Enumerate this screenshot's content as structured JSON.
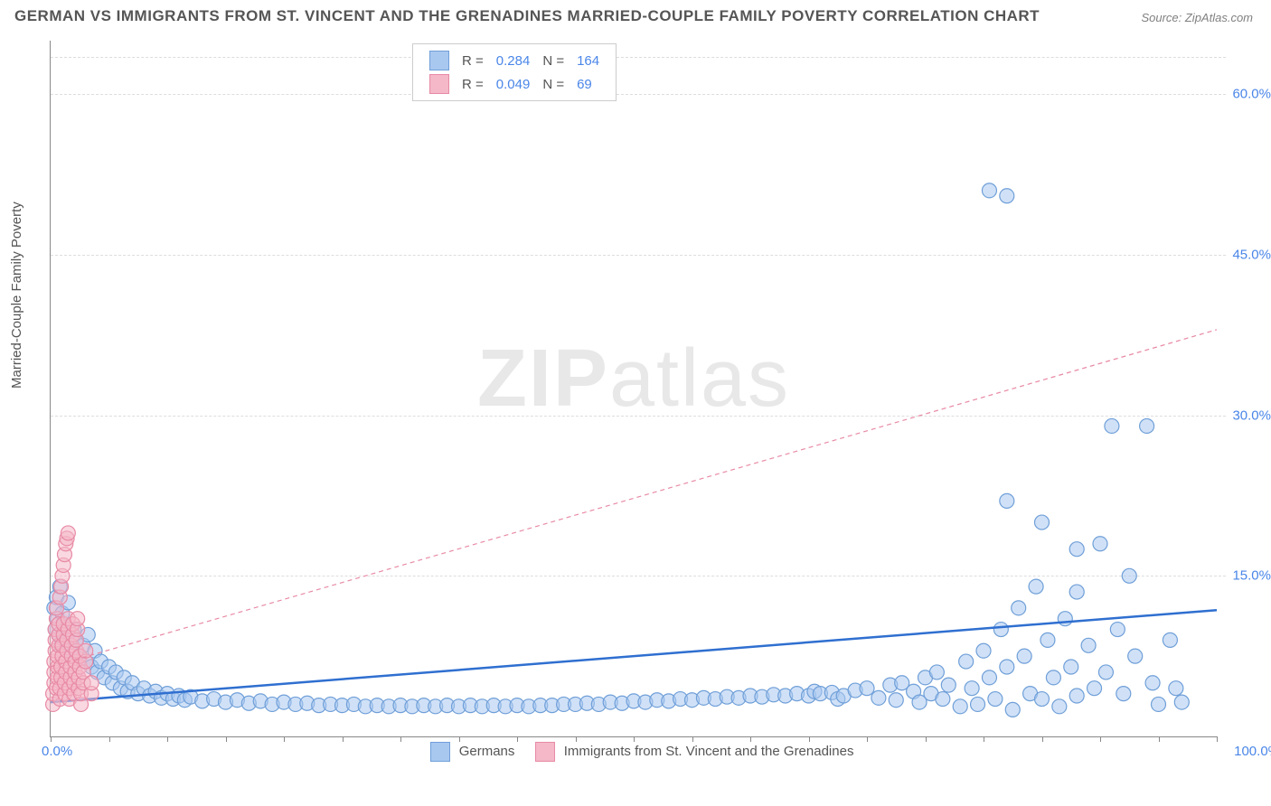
{
  "title": "GERMAN VS IMMIGRANTS FROM ST. VINCENT AND THE GRENADINES MARRIED-COUPLE FAMILY POVERTY CORRELATION CHART",
  "source": "Source: ZipAtlas.com",
  "watermark_bold": "ZIP",
  "watermark_light": "atlas",
  "chart": {
    "type": "scatter",
    "ylabel": "Married-Couple Family Poverty",
    "xlim": [
      0,
      100
    ],
    "ylim": [
      0,
      65
    ],
    "yticks": [
      15,
      30,
      45,
      60
    ],
    "ytick_labels": [
      "15.0%",
      "30.0%",
      "45.0%",
      "60.0%"
    ],
    "xtick_left": "0.0%",
    "xtick_right": "100.0%",
    "xtick_positions": [
      0,
      5,
      10,
      15,
      20,
      25,
      30,
      35,
      40,
      45,
      50,
      55,
      60,
      65,
      70,
      75,
      80,
      85,
      90,
      95,
      100
    ],
    "grid_color": "#dddddd",
    "background_color": "#ffffff",
    "marker_radius_base": 8,
    "marker_stroke_width": 1.2,
    "series": [
      {
        "name": "Germans",
        "label": "Germans",
        "color_fill": "#a9c8f0",
        "color_stroke": "#6f9fd8",
        "fill_opacity": 0.55,
        "R": "0.284",
        "N": "164",
        "trend": {
          "x1": 0,
          "y1": 3.2,
          "x2": 100,
          "y2": 11.8,
          "color": "#2f6fd0",
          "width": 2.5,
          "dash": "none"
        },
        "points": [
          [
            0.3,
            12
          ],
          [
            0.4,
            10
          ],
          [
            0.5,
            13
          ],
          [
            0.6,
            11
          ],
          [
            0.7,
            9.5
          ],
          [
            0.8,
            14
          ],
          [
            0.9,
            8.5
          ],
          [
            1.0,
            11.5
          ],
          [
            1.1,
            10.5
          ],
          [
            1.2,
            9
          ],
          [
            1.5,
            12.5
          ],
          [
            1.8,
            8
          ],
          [
            2.0,
            10
          ],
          [
            2.2,
            9
          ],
          [
            2.5,
            7.5
          ],
          [
            2.8,
            8.5
          ],
          [
            3.0,
            7
          ],
          [
            3.2,
            9.5
          ],
          [
            3.5,
            6.5
          ],
          [
            3.8,
            8
          ],
          [
            4.0,
            6
          ],
          [
            4.3,
            7
          ],
          [
            4.6,
            5.5
          ],
          [
            5.0,
            6.5
          ],
          [
            5.3,
            5
          ],
          [
            5.6,
            6
          ],
          [
            6.0,
            4.5
          ],
          [
            6.3,
            5.5
          ],
          [
            6.6,
            4.2
          ],
          [
            7.0,
            5
          ],
          [
            7.5,
            4
          ],
          [
            8.0,
            4.5
          ],
          [
            8.5,
            3.8
          ],
          [
            9.0,
            4.2
          ],
          [
            9.5,
            3.6
          ],
          [
            10,
            4
          ],
          [
            10.5,
            3.5
          ],
          [
            11,
            3.8
          ],
          [
            11.5,
            3.4
          ],
          [
            12,
            3.7
          ],
          [
            13,
            3.3
          ],
          [
            14,
            3.5
          ],
          [
            15,
            3.2
          ],
          [
            16,
            3.4
          ],
          [
            17,
            3.1
          ],
          [
            18,
            3.3
          ],
          [
            19,
            3.0
          ],
          [
            20,
            3.2
          ],
          [
            21,
            3.0
          ],
          [
            22,
            3.1
          ],
          [
            23,
            2.9
          ],
          [
            24,
            3.0
          ],
          [
            25,
            2.9
          ],
          [
            26,
            3.0
          ],
          [
            27,
            2.8
          ],
          [
            28,
            2.9
          ],
          [
            29,
            2.8
          ],
          [
            30,
            2.9
          ],
          [
            31,
            2.8
          ],
          [
            32,
            2.9
          ],
          [
            33,
            2.8
          ],
          [
            34,
            2.9
          ],
          [
            35,
            2.8
          ],
          [
            36,
            2.9
          ],
          [
            37,
            2.8
          ],
          [
            38,
            2.9
          ],
          [
            39,
            2.8
          ],
          [
            40,
            2.9
          ],
          [
            41,
            2.8
          ],
          [
            42,
            2.9
          ],
          [
            43,
            2.9
          ],
          [
            44,
            3.0
          ],
          [
            45,
            3.0
          ],
          [
            46,
            3.1
          ],
          [
            47,
            3.0
          ],
          [
            48,
            3.2
          ],
          [
            49,
            3.1
          ],
          [
            50,
            3.3
          ],
          [
            51,
            3.2
          ],
          [
            52,
            3.4
          ],
          [
            53,
            3.3
          ],
          [
            54,
            3.5
          ],
          [
            55,
            3.4
          ],
          [
            56,
            3.6
          ],
          [
            57,
            3.5
          ],
          [
            58,
            3.7
          ],
          [
            59,
            3.6
          ],
          [
            60,
            3.8
          ],
          [
            61,
            3.7
          ],
          [
            62,
            3.9
          ],
          [
            63,
            3.8
          ],
          [
            64,
            4.0
          ],
          [
            65,
            3.8
          ],
          [
            65.5,
            4.2
          ],
          [
            66,
            4.0
          ],
          [
            67,
            4.1
          ],
          [
            67.5,
            3.5
          ],
          [
            68,
            3.8
          ],
          [
            69,
            4.3
          ],
          [
            70,
            4.5
          ],
          [
            71,
            3.6
          ],
          [
            72,
            4.8
          ],
          [
            72.5,
            3.4
          ],
          [
            73,
            5.0
          ],
          [
            74,
            4.2
          ],
          [
            74.5,
            3.2
          ],
          [
            75,
            5.5
          ],
          [
            75.5,
            4.0
          ],
          [
            76,
            6.0
          ],
          [
            76.5,
            3.5
          ],
          [
            77,
            4.8
          ],
          [
            78,
            2.8
          ],
          [
            78.5,
            7.0
          ],
          [
            79,
            4.5
          ],
          [
            79.5,
            3.0
          ],
          [
            80,
            8.0
          ],
          [
            80.5,
            5.5
          ],
          [
            81,
            3.5
          ],
          [
            81.5,
            10
          ],
          [
            82,
            6.5
          ],
          [
            82.5,
            2.5
          ],
          [
            83,
            12
          ],
          [
            83.5,
            7.5
          ],
          [
            84,
            4.0
          ],
          [
            84.5,
            14
          ],
          [
            85,
            3.5
          ],
          [
            85.5,
            9.0
          ],
          [
            86,
            5.5
          ],
          [
            86.5,
            2.8
          ],
          [
            87,
            11
          ],
          [
            87.5,
            6.5
          ],
          [
            88,
            13.5
          ],
          [
            88,
            3.8
          ],
          [
            89,
            8.5
          ],
          [
            89.5,
            4.5
          ],
          [
            90,
            18
          ],
          [
            90.5,
            6.0
          ],
          [
            91,
            29
          ],
          [
            91.5,
            10
          ],
          [
            92,
            4.0
          ],
          [
            92.5,
            15
          ],
          [
            93,
            7.5
          ],
          [
            94,
            29
          ],
          [
            94.5,
            5.0
          ],
          [
            95,
            3.0
          ],
          [
            96,
            9.0
          ],
          [
            96.5,
            4.5
          ],
          [
            97,
            3.2
          ],
          [
            82,
            22
          ],
          [
            85,
            20
          ],
          [
            88,
            17.5
          ],
          [
            80.5,
            51
          ],
          [
            82,
            50.5
          ]
        ]
      },
      {
        "name": "Immigrants from St. Vincent and the Grenadines",
        "label": "Immigrants from St. Vincent and the Grenadines",
        "color_fill": "#f4b8c8",
        "color_stroke": "#e88aa5",
        "fill_opacity": 0.55,
        "R": "0.049",
        "N": "69",
        "trend": {
          "x1": 0,
          "y1": 6.5,
          "x2": 100,
          "y2": 38,
          "color": "#e88aa5",
          "width": 1.2,
          "dash": "5,4"
        },
        "points": [
          [
            0.2,
            3
          ],
          [
            0.2,
            4
          ],
          [
            0.3,
            5
          ],
          [
            0.3,
            6
          ],
          [
            0.3,
            7
          ],
          [
            0.4,
            8
          ],
          [
            0.4,
            9
          ],
          [
            0.4,
            10
          ],
          [
            0.5,
            11
          ],
          [
            0.5,
            12
          ],
          [
            0.5,
            4.5
          ],
          [
            0.6,
            5.5
          ],
          [
            0.6,
            6.5
          ],
          [
            0.6,
            7.5
          ],
          [
            0.7,
            8.5
          ],
          [
            0.7,
            9.5
          ],
          [
            0.7,
            10.5
          ],
          [
            0.8,
            3.5
          ],
          [
            0.8,
            4.5
          ],
          [
            0.8,
            13
          ],
          [
            0.9,
            5.5
          ],
          [
            0.9,
            6.5
          ],
          [
            0.9,
            14
          ],
          [
            1.0,
            7.5
          ],
          [
            1.0,
            8.5
          ],
          [
            1.0,
            15
          ],
          [
            1.1,
            9.5
          ],
          [
            1.1,
            10.5
          ],
          [
            1.1,
            16
          ],
          [
            1.2,
            4
          ],
          [
            1.2,
            5
          ],
          [
            1.2,
            17
          ],
          [
            1.3,
            6
          ],
          [
            1.3,
            7
          ],
          [
            1.3,
            18
          ],
          [
            1.4,
            8
          ],
          [
            1.4,
            9
          ],
          [
            1.4,
            18.5
          ],
          [
            1.5,
            10
          ],
          [
            1.5,
            11
          ],
          [
            1.5,
            19
          ],
          [
            1.6,
            3.5
          ],
          [
            1.6,
            4.5
          ],
          [
            1.7,
            5.5
          ],
          [
            1.7,
            6.5
          ],
          [
            1.8,
            7.5
          ],
          [
            1.8,
            8.5
          ],
          [
            1.9,
            9.5
          ],
          [
            1.9,
            10.5
          ],
          [
            2.0,
            4
          ],
          [
            2.0,
            5
          ],
          [
            2.1,
            6
          ],
          [
            2.1,
            7
          ],
          [
            2.2,
            8
          ],
          [
            2.2,
            9
          ],
          [
            2.3,
            10
          ],
          [
            2.3,
            11
          ],
          [
            2.4,
            4.5
          ],
          [
            2.4,
            5.5
          ],
          [
            2.5,
            6.5
          ],
          [
            2.5,
            7.5
          ],
          [
            2.6,
            3
          ],
          [
            2.6,
            4
          ],
          [
            2.8,
            5
          ],
          [
            2.8,
            6
          ],
          [
            3.0,
            7
          ],
          [
            3.0,
            8
          ],
          [
            3.5,
            4
          ],
          [
            3.5,
            5
          ]
        ]
      }
    ],
    "legend_top": {
      "R_label": "R =",
      "N_label": "N ="
    },
    "bottom_legend": true
  }
}
